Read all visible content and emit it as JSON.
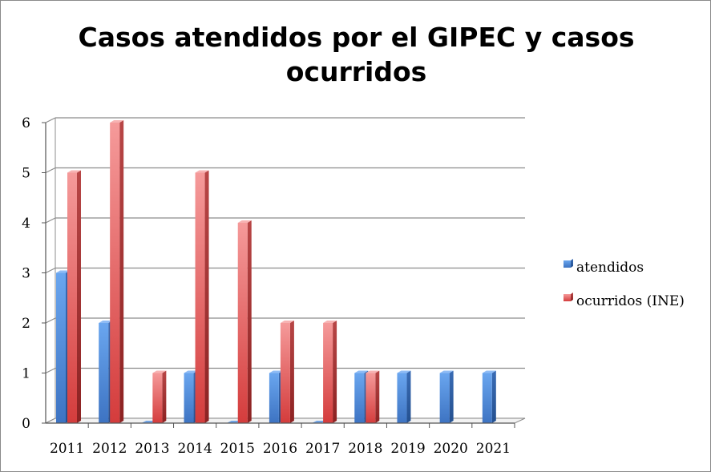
{
  "chart_data": {
    "type": "bar",
    "title_lines": [
      "Casos atendidos por el GIPEC y casos",
      "ocurridos"
    ],
    "categories": [
      "2011",
      "2012",
      "2013",
      "2014",
      "2015",
      "2016",
      "2017",
      "2018",
      "2019",
      "2020",
      "2021"
    ],
    "series": [
      {
        "name": "atendidos",
        "values": [
          3,
          2,
          0,
          1,
          0,
          1,
          0,
          1,
          1,
          1,
          1
        ],
        "color": "#4f8fde"
      },
      {
        "name": "ocurridos (INE)",
        "values": [
          5,
          6,
          1,
          5,
          4,
          2,
          2,
          1,
          null,
          null,
          null
        ],
        "color": "#d94b4b"
      }
    ],
    "y_ticks": [
      "0",
      "1",
      "2",
      "3",
      "4",
      "5",
      "6"
    ],
    "ylim": [
      0,
      6
    ],
    "xlabel": "",
    "ylabel": "",
    "grid": true,
    "legend_position": "right"
  }
}
